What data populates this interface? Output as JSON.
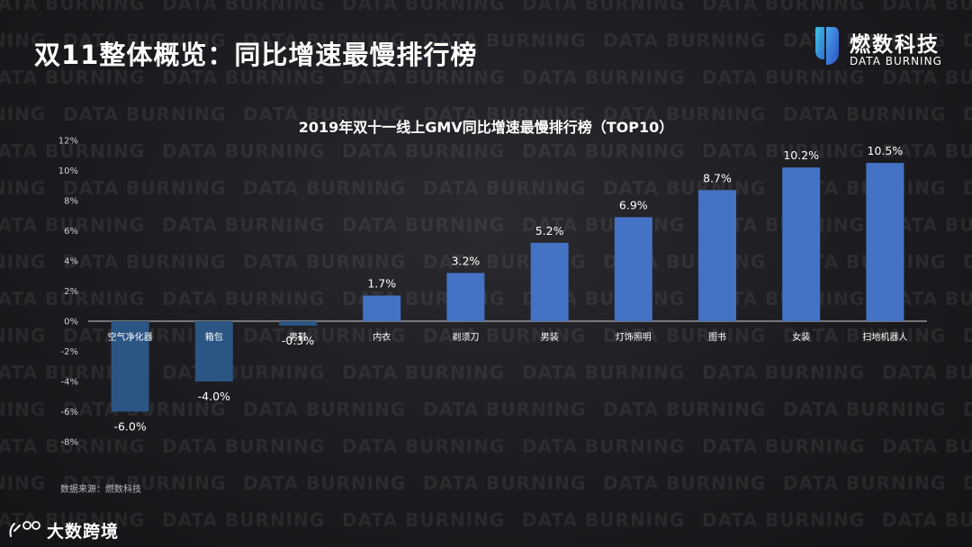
{
  "page": {
    "title": "双11整体概览：同比增速最慢排行榜",
    "watermark_text": "DATA BURNING",
    "source_note": "数据来源：燃数科技"
  },
  "brand": {
    "name_cn": "燃数科技",
    "name_en": "DATA BURNING",
    "icon": "data-burning-logo-icon"
  },
  "footer": {
    "logo_text": "大数跨境",
    "icon": "kuajing-logo-icon"
  },
  "colors": {
    "positive_bar": "#4472c4",
    "negative_bar": "#2b5583",
    "text": "#ffffff",
    "axis": "#cfcfd4"
  },
  "chart_data": {
    "type": "bar",
    "title": "2019年双十一线上GMV同比增速最慢排行榜（TOP10）",
    "xlabel": "",
    "ylabel": "",
    "categories": [
      "空气净化器",
      "箱包",
      "男鞋",
      "内衣",
      "剃须刀",
      "男装",
      "灯饰照明",
      "图书",
      "女装",
      "扫地机器人"
    ],
    "values": [
      -6.0,
      -4.0,
      -0.3,
      1.7,
      3.2,
      5.2,
      6.9,
      8.7,
      10.2,
      10.5
    ],
    "data_labels": [
      "-6.0%",
      "-4.0%",
      "-0.3%",
      "1.7%",
      "3.2%",
      "5.2%",
      "6.9%",
      "8.7%",
      "10.2%",
      "10.5%"
    ],
    "ylim": [
      -8,
      12
    ],
    "y_ticks": [
      12,
      10,
      8,
      6,
      4,
      2,
      0,
      -2,
      -4,
      -6,
      -8
    ],
    "y_tick_labels": [
      "12%",
      "10%",
      "8%",
      "6%",
      "4%",
      "2%",
      "0%",
      "-2%",
      "-4%",
      "-6%",
      "-8%"
    ],
    "grid": false,
    "legend": "none"
  }
}
